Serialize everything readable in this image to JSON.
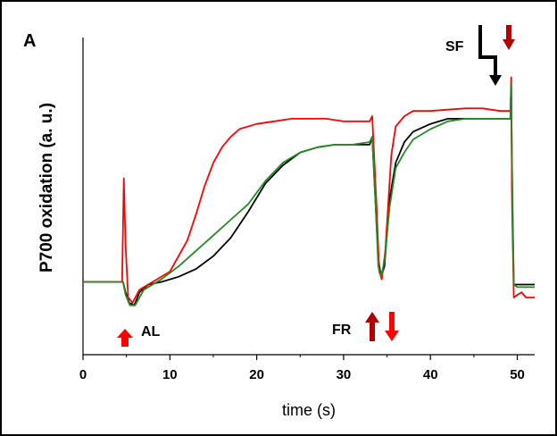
{
  "chart_data": {
    "type": "line",
    "panel_label": "A",
    "xlabel": "time (s)",
    "ylabel": "P700 oxidation (a. u.)",
    "xlim": [
      0,
      52
    ],
    "ylim": [
      0,
      1
    ],
    "x_ticks": [
      "0",
      "10",
      "20",
      "30",
      "40",
      "50"
    ],
    "x_tick_values": [
      0,
      10,
      20,
      30,
      40,
      50
    ],
    "grid": false,
    "annotations": [
      {
        "text": "AL",
        "x": 5.2,
        "arrows": [
          "up-red"
        ]
      },
      {
        "text": "FR",
        "x": 34.3,
        "arrows": [
          "up-darkred",
          "down-red"
        ]
      },
      {
        "text": "SF",
        "x": 48.0,
        "arrows": [
          "step-down-black",
          "down-darkred"
        ]
      }
    ],
    "series": [
      {
        "color": "#000000",
        "points": [
          [
            0,
            0.16
          ],
          [
            4.6,
            0.16
          ],
          [
            4.9,
            0.12
          ],
          [
            5.3,
            0.08
          ],
          [
            5.9,
            0.07
          ],
          [
            6.5,
            0.12
          ],
          [
            7.5,
            0.15
          ],
          [
            9,
            0.16
          ],
          [
            11,
            0.18
          ],
          [
            13,
            0.21
          ],
          [
            15,
            0.26
          ],
          [
            17,
            0.33
          ],
          [
            19,
            0.43
          ],
          [
            21,
            0.54
          ],
          [
            23,
            0.61
          ],
          [
            25,
            0.66
          ],
          [
            27,
            0.68
          ],
          [
            29,
            0.69
          ],
          [
            31,
            0.69
          ],
          [
            33,
            0.69
          ],
          [
            33.3,
            0.72
          ],
          [
            33.7,
            0.45
          ],
          [
            34,
            0.25
          ],
          [
            34.3,
            0.18
          ],
          [
            34.7,
            0.22
          ],
          [
            35.3,
            0.48
          ],
          [
            36,
            0.62
          ],
          [
            37,
            0.7
          ],
          [
            38,
            0.74
          ],
          [
            40,
            0.77
          ],
          [
            42,
            0.79
          ],
          [
            44,
            0.79
          ],
          [
            46,
            0.79
          ],
          [
            48,
            0.79
          ],
          [
            49.2,
            0.79
          ],
          [
            49.3,
            0.92
          ],
          [
            49.4,
            0.5
          ],
          [
            49.6,
            0.15
          ],
          [
            50,
            0.15
          ],
          [
            52,
            0.15
          ]
        ]
      },
      {
        "color": "#ff0000",
        "points": [
          [
            0,
            0.16
          ],
          [
            4.5,
            0.16
          ],
          [
            4.7,
            0.56
          ],
          [
            4.9,
            0.3
          ],
          [
            5.2,
            0.1
          ],
          [
            5.7,
            0.08
          ],
          [
            6.5,
            0.13
          ],
          [
            8,
            0.16
          ],
          [
            10,
            0.2
          ],
          [
            12,
            0.32
          ],
          [
            13,
            0.42
          ],
          [
            14,
            0.53
          ],
          [
            15,
            0.62
          ],
          [
            16,
            0.68
          ],
          [
            17,
            0.72
          ],
          [
            18,
            0.75
          ],
          [
            20,
            0.77
          ],
          [
            22,
            0.78
          ],
          [
            24,
            0.79
          ],
          [
            26,
            0.79
          ],
          [
            28,
            0.79
          ],
          [
            30,
            0.78
          ],
          [
            33,
            0.78
          ],
          [
            33.3,
            0.8
          ],
          [
            33.8,
            0.45
          ],
          [
            34.1,
            0.2
          ],
          [
            34.4,
            0.17
          ],
          [
            34.8,
            0.28
          ],
          [
            35.5,
            0.65
          ],
          [
            36,
            0.76
          ],
          [
            37,
            0.8
          ],
          [
            38,
            0.82
          ],
          [
            40,
            0.82
          ],
          [
            44,
            0.83
          ],
          [
            46,
            0.83
          ],
          [
            48,
            0.82
          ],
          [
            49.2,
            0.82
          ],
          [
            49.3,
            0.95
          ],
          [
            49.4,
            0.45
          ],
          [
            49.6,
            0.1
          ],
          [
            50,
            0.11
          ],
          [
            50.5,
            0.12
          ],
          [
            51,
            0.1
          ],
          [
            52,
            0.1
          ]
        ]
      },
      {
        "color": "#228b22",
        "points": [
          [
            0,
            0.16
          ],
          [
            4.6,
            0.16
          ],
          [
            4.9,
            0.11
          ],
          [
            5.4,
            0.07
          ],
          [
            6,
            0.07
          ],
          [
            7,
            0.13
          ],
          [
            9,
            0.17
          ],
          [
            11,
            0.22
          ],
          [
            13,
            0.28
          ],
          [
            15,
            0.34
          ],
          [
            17,
            0.4
          ],
          [
            19,
            0.46
          ],
          [
            21,
            0.55
          ],
          [
            23,
            0.62
          ],
          [
            25,
            0.66
          ],
          [
            27,
            0.68
          ],
          [
            29,
            0.69
          ],
          [
            31,
            0.69
          ],
          [
            33,
            0.7
          ],
          [
            33.3,
            0.72
          ],
          [
            33.7,
            0.45
          ],
          [
            34,
            0.22
          ],
          [
            34.3,
            0.18
          ],
          [
            34.7,
            0.24
          ],
          [
            35.3,
            0.45
          ],
          [
            36,
            0.6
          ],
          [
            37,
            0.66
          ],
          [
            38,
            0.71
          ],
          [
            40,
            0.75
          ],
          [
            42,
            0.78
          ],
          [
            44,
            0.79
          ],
          [
            46,
            0.79
          ],
          [
            48,
            0.79
          ],
          [
            49.2,
            0.79
          ],
          [
            49.3,
            0.92
          ],
          [
            49.4,
            0.6
          ],
          [
            49.6,
            0.15
          ],
          [
            50,
            0.14
          ],
          [
            52,
            0.14
          ]
        ]
      }
    ]
  }
}
